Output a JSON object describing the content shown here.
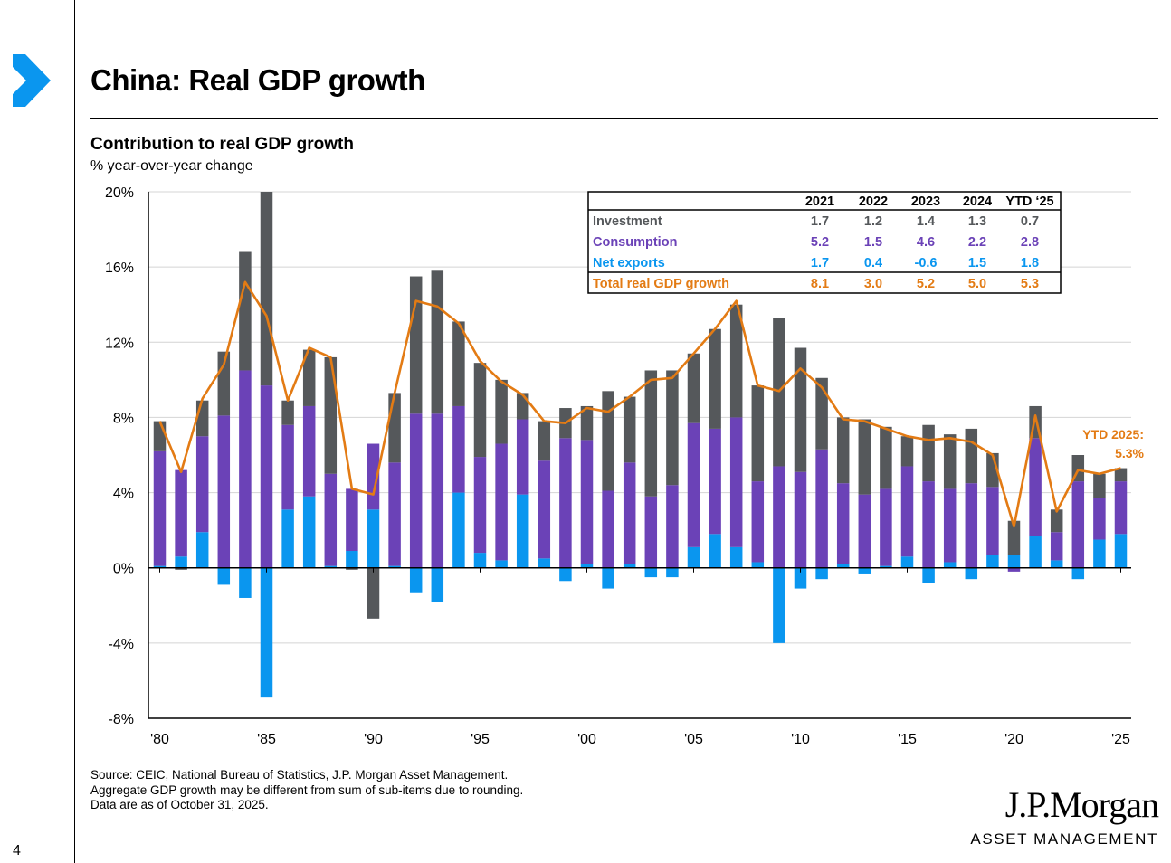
{
  "slide": {
    "title": "China: Real GDP growth",
    "page_number": "4",
    "source_lines": [
      "Source: CEIC, National Bureau of Statistics, J.P. Morgan Asset Management.",
      "Aggregate GDP growth may be different from sum of sub-items due to rounding.",
      "Data are as of October 31, 2025."
    ],
    "logo_name": "J.P.Morgan",
    "logo_sub": "ASSET MANAGEMENT",
    "colors": {
      "investment": "#55585b",
      "consumption": "#6b42b7",
      "net_exports": "#0a96ef",
      "total": "#e37b14",
      "brand": "#0a96ef"
    }
  },
  "chart_data": {
    "type": "bar",
    "stacked": true,
    "title": "Contribution to real GDP growth",
    "ylabel": "% year-over-year change",
    "ylim": [
      -8,
      20
    ],
    "yticks": [
      -8,
      -4,
      0,
      4,
      8,
      12,
      16,
      20
    ],
    "ytick_labels": [
      "-8%",
      "-4%",
      "0%",
      "4%",
      "8%",
      "12%",
      "16%",
      "20%"
    ],
    "x": [
      1980,
      1981,
      1982,
      1983,
      1984,
      1985,
      1986,
      1987,
      1988,
      1989,
      1990,
      1991,
      1992,
      1993,
      1994,
      1995,
      1996,
      1997,
      1998,
      1999,
      2000,
      2001,
      2002,
      2003,
      2004,
      2005,
      2006,
      2007,
      2008,
      2009,
      2010,
      2011,
      2012,
      2013,
      2014,
      2015,
      2016,
      2017,
      2018,
      2019,
      2020,
      2021,
      2022,
      2023,
      2024,
      2025
    ],
    "xtick_years": [
      1980,
      1985,
      1990,
      1995,
      2000,
      2005,
      2010,
      2015,
      2020,
      2025
    ],
    "xtick_labels": [
      "'80",
      "'85",
      "'90",
      "'95",
      "'00",
      "'05",
      "'10",
      "'15",
      "'20",
      "'25"
    ],
    "series": [
      {
        "name": "Net exports",
        "color": "#0a96ef",
        "values": [
          0.1,
          0.6,
          1.9,
          -0.9,
          -1.6,
          -6.9,
          3.1,
          3.8,
          0.1,
          0.9,
          3.1,
          0.1,
          -1.3,
          -1.8,
          4.0,
          0.8,
          0.4,
          3.9,
          0.5,
          -0.7,
          0.2,
          -1.1,
          0.2,
          -0.5,
          -0.5,
          1.1,
          1.8,
          1.1,
          0.3,
          -4.0,
          -1.1,
          -0.6,
          0.2,
          -0.3,
          0.1,
          0.6,
          -0.8,
          0.3,
          -0.6,
          0.7,
          0.7,
          1.7,
          0.4,
          -0.6,
          1.5,
          1.8
        ]
      },
      {
        "name": "Consumption",
        "color": "#6b42b7",
        "values": [
          6.1,
          4.6,
          5.1,
          8.1,
          10.5,
          9.7,
          4.5,
          4.8,
          4.9,
          3.3,
          3.5,
          5.5,
          8.2,
          8.2,
          4.6,
          5.1,
          6.2,
          4.0,
          5.2,
          6.9,
          6.6,
          4.1,
          5.4,
          3.8,
          4.4,
          6.6,
          5.6,
          6.9,
          4.3,
          5.4,
          5.1,
          6.3,
          4.3,
          3.9,
          4.1,
          4.8,
          4.6,
          3.9,
          4.5,
          3.6,
          -0.2,
          5.2,
          1.5,
          4.6,
          2.2,
          2.8
        ]
      },
      {
        "name": "Investment",
        "color": "#55585b",
        "values": [
          1.6,
          -0.1,
          1.9,
          3.4,
          6.3,
          10.3,
          1.3,
          3.0,
          6.2,
          -0.1,
          -2.7,
          3.7,
          7.3,
          7.6,
          4.5,
          5.0,
          3.4,
          1.4,
          2.1,
          1.6,
          1.8,
          5.3,
          3.5,
          6.7,
          6.1,
          3.7,
          5.3,
          6.0,
          5.1,
          7.9,
          6.6,
          3.8,
          3.5,
          4.0,
          3.3,
          1.6,
          3.0,
          2.9,
          2.9,
          1.8,
          1.8,
          1.7,
          1.2,
          1.4,
          1.3,
          0.7
        ]
      }
    ],
    "total": {
      "name": "Total real GDP growth",
      "color": "#e37b14",
      "values": [
        7.8,
        5.1,
        9.0,
        10.8,
        15.2,
        13.4,
        8.9,
        11.7,
        11.2,
        4.2,
        3.9,
        9.3,
        14.2,
        13.9,
        13.0,
        11.0,
        9.9,
        9.2,
        7.8,
        7.7,
        8.5,
        8.3,
        9.1,
        10.0,
        10.1,
        11.4,
        12.7,
        14.2,
        9.7,
        9.4,
        10.6,
        9.6,
        7.9,
        7.8,
        7.4,
        7.0,
        6.8,
        6.9,
        6.7,
        6.0,
        2.2,
        8.1,
        3.0,
        5.2,
        5.0,
        5.3
      ]
    },
    "annotation": {
      "line1": "YTD 2025:",
      "line2": "5.3%",
      "color": "#e37b14"
    },
    "table": {
      "headers": [
        "",
        "2021",
        "2022",
        "2023",
        "2024",
        "YTD ‘25"
      ],
      "rows": [
        {
          "label": "Investment",
          "color": "#55585b",
          "values": [
            "1.7",
            "1.2",
            "1.4",
            "1.3",
            "0.7"
          ]
        },
        {
          "label": "Consumption",
          "color": "#6b42b7",
          "values": [
            "5.2",
            "1.5",
            "4.6",
            "2.2",
            "2.8"
          ]
        },
        {
          "label": "Net exports",
          "color": "#0a96ef",
          "values": [
            "1.7",
            "0.4",
            "-0.6",
            "1.5",
            "1.8"
          ]
        },
        {
          "label": "Total real GDP growth",
          "color": "#e37b14",
          "values": [
            "8.1",
            "3.0",
            "5.2",
            "5.0",
            "5.3"
          ]
        }
      ]
    }
  }
}
